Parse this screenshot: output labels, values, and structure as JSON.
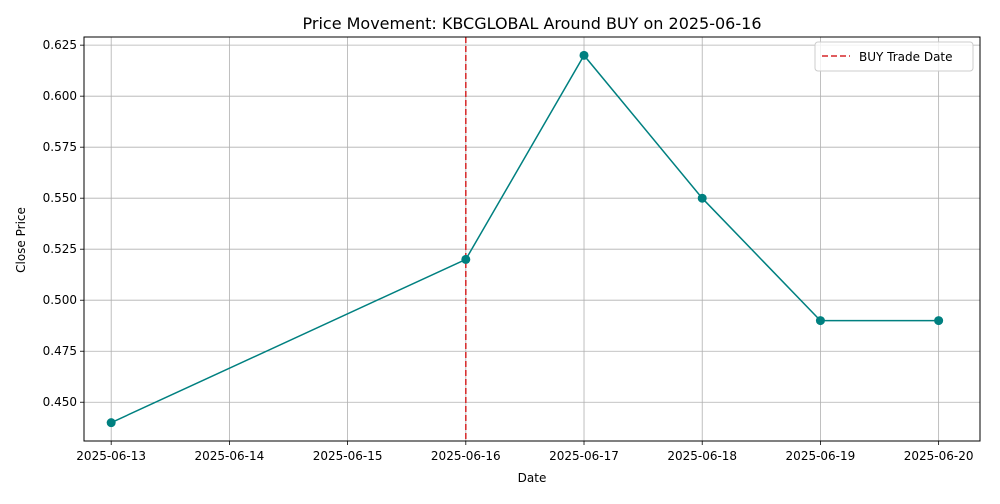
{
  "chart_data": {
    "type": "line",
    "title": "Price Movement: KBCGLOBAL Around BUY on 2025-06-16",
    "xlabel": "Date",
    "ylabel": "Close Price",
    "x": [
      "2025-06-13",
      "2025-06-16",
      "2025-06-17",
      "2025-06-18",
      "2025-06-19",
      "2025-06-20"
    ],
    "series": [
      {
        "values": [
          0.44,
          0.52,
          0.62,
          0.55,
          0.49,
          0.49
        ],
        "color": "#008080",
        "marker": "circle"
      }
    ],
    "x_ticks": [
      "2025-06-13",
      "2025-06-14",
      "2025-06-15",
      "2025-06-16",
      "2025-06-17",
      "2025-06-18",
      "2025-06-19",
      "2025-06-20"
    ],
    "y_ticks": [
      0.45,
      0.475,
      0.5,
      0.525,
      0.55,
      0.575,
      0.6,
      0.625
    ],
    "y_tick_labels": [
      "0.450",
      "0.475",
      "0.500",
      "0.525",
      "0.550",
      "0.575",
      "0.600",
      "0.625"
    ],
    "xlim": [
      "2025-06-12.77",
      "2025-06-20.35"
    ],
    "ylim": [
      0.431,
      0.629
    ],
    "grid": true,
    "annotations": [
      {
        "type": "vline",
        "x": "2025-06-16",
        "label": "BUY Trade Date",
        "color": "#d62728",
        "style": "dashed"
      }
    ],
    "legend": {
      "position": "top-right",
      "entries": [
        "BUY Trade Date"
      ]
    }
  }
}
